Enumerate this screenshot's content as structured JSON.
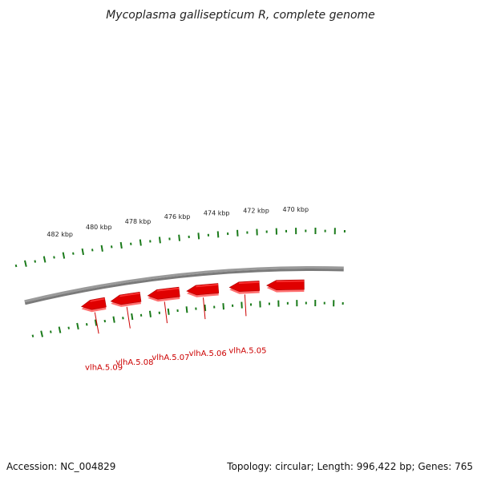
{
  "title": "Mycoplasma gallisepticum R, complete genome",
  "footer": {
    "accession": "Accession: NC_004829",
    "summary": "Topology: circular; Length: 996,422 bp; Genes: 765"
  },
  "colors": {
    "backbone": "#7a7a7a",
    "gene_fill": "#e00000",
    "gene_highlight": "#ff3a3a",
    "gene_shadow": "#ff7070",
    "tick": "#1a7a1a",
    "gene_label": "#cc0000"
  },
  "kbp_labels": [
    "482 kbp",
    "480 kbp",
    "478 kbp",
    "476 kbp",
    "474 kbp",
    "472 kbp",
    "470 kbp"
  ],
  "genes": [
    {
      "label": "vlhA.5.09",
      "start_kbp": 481.6,
      "end_kbp": 480.3
    },
    {
      "label": "vlhA.5.08",
      "start_kbp": 480.0,
      "end_kbp": 478.4
    },
    {
      "label": "vlhA.5.07",
      "start_kbp": 478.0,
      "end_kbp": 476.3
    },
    {
      "label": "vlhA.5.06",
      "start_kbp": 475.9,
      "end_kbp": 474.2
    },
    {
      "label": "vlhA.5.05",
      "start_kbp": 473.6,
      "end_kbp": 472.0
    },
    {
      "label": "",
      "start_kbp": 471.6,
      "end_kbp": 469.6
    }
  ]
}
